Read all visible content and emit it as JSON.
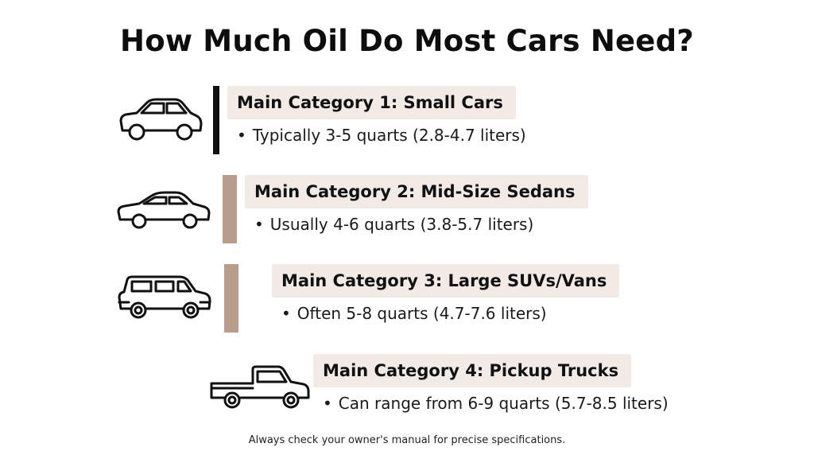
{
  "title": "How Much Oil Do Most Cars Need?",
  "footnote": "Always check your owner's manual for precise specifications.",
  "colors": {
    "bar_dark": "#111111",
    "bar_tan": "#b89c8c",
    "label_bg": "#f2ebe5"
  },
  "categories": [
    {
      "label": "Main Category 1: Small Cars",
      "detail": "Typically 3-5 quarts (2.8-4.7 liters)",
      "icon": "small-car-icon"
    },
    {
      "label": "Main Category 2: Mid-Size Sedans",
      "detail": "Usually 4-6 quarts (3.8-5.7 liters)",
      "icon": "sedan-icon"
    },
    {
      "label": "Main Category 3: Large SUVs/Vans",
      "detail": "Often 5-8 quarts (4.7-7.6 liters)",
      "icon": "suv-icon"
    },
    {
      "label": "Main Category 4: Pickup Trucks",
      "detail": "Can range from 6-9 quarts (5.7-8.5 liters)",
      "icon": "pickup-truck-icon"
    }
  ]
}
